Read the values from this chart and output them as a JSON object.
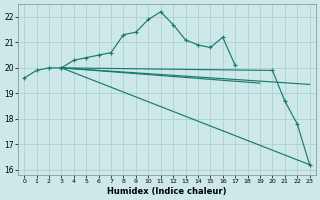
{
  "xlabel": "Humidex (Indice chaleur)",
  "xlim": [
    -0.5,
    23.5
  ],
  "ylim": [
    15.8,
    22.5
  ],
  "yticks": [
    16,
    17,
    18,
    19,
    20,
    21,
    22
  ],
  "xticks": [
    0,
    1,
    2,
    3,
    4,
    5,
    6,
    7,
    8,
    9,
    10,
    11,
    12,
    13,
    14,
    15,
    16,
    17,
    18,
    19,
    20,
    21,
    22,
    23
  ],
  "bg_color": "#cce8e8",
  "grid_color": "#aacccc",
  "line_color": "#1a7a6e",
  "curve1_x": [
    0,
    1,
    2,
    3,
    4,
    5,
    6,
    7,
    8,
    9,
    10,
    11,
    12,
    13,
    14,
    15,
    16,
    17
  ],
  "curve1_y": [
    19.6,
    19.9,
    20.0,
    20.0,
    20.3,
    20.4,
    20.5,
    20.6,
    21.3,
    21.4,
    21.9,
    22.2,
    21.7,
    21.1,
    20.9,
    20.8,
    21.2,
    20.1
  ],
  "curve2_x": [
    3,
    19
  ],
  "curve2_y": [
    20.0,
    19.4
  ],
  "curve3_x": [
    3,
    20,
    21,
    22,
    23
  ],
  "curve3_y": [
    20.0,
    19.9,
    18.7,
    17.8,
    16.2
  ],
  "curve4_x": [
    3,
    23
  ],
  "curve4_y": [
    20.0,
    16.2
  ],
  "curve5_x": [
    3,
    23
  ],
  "curve5_y": [
    20.0,
    19.35
  ]
}
